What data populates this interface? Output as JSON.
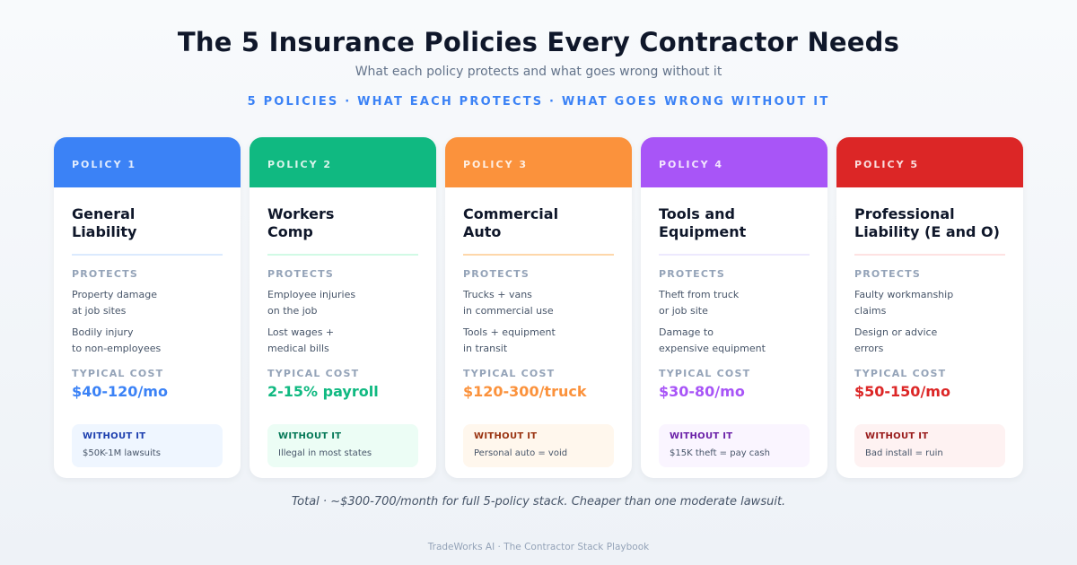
{
  "header": {
    "title": "The 5 Insurance Policies Every Contractor Needs",
    "subtitle": "What each policy protects and what goes wrong without it",
    "kicker": "5 POLICIES · WHAT EACH PROTECTS · WHAT GOES WRONG WITHOUT IT"
  },
  "labels": {
    "protects": "PROTECTS",
    "typical_cost": "TYPICAL COST",
    "without_it": "WITHOUT IT"
  },
  "policies": [
    {
      "tag": "POLICY 1",
      "name": "General\nLiability",
      "protects": [
        "Property damage\nat job sites",
        "Bodily injury\nto non-employees"
      ],
      "cost": "$40-120/mo",
      "without": "$50K-1M lawsuits",
      "accent": "#3b82f6",
      "divider": "#dbeafe",
      "without_bg": "#eff6ff",
      "without_label": "#1e40af"
    },
    {
      "tag": "POLICY 2",
      "name": "Workers\nComp",
      "protects": [
        "Employee injuries\non the job",
        "Lost wages +\nmedical bills"
      ],
      "cost": "2-15% payroll",
      "without": "Illegal in most states",
      "accent": "#10b981",
      "divider": "#d1fae5",
      "without_bg": "#ecfdf5",
      "without_label": "#047857"
    },
    {
      "tag": "POLICY 3",
      "name": "Commercial\nAuto",
      "protects": [
        "Trucks + vans\nin commercial use",
        "Tools + equipment\nin transit"
      ],
      "cost": "$120-300/truck",
      "without": "Personal auto = void",
      "accent": "#fb923c",
      "divider": "#fed7aa",
      "without_bg": "#fff7ed",
      "without_label": "#9a3412"
    },
    {
      "tag": "POLICY 4",
      "name": "Tools and\nEquipment",
      "protects": [
        "Theft from truck\nor job site",
        "Damage to\nexpensive equipment"
      ],
      "cost": "$30-80/mo",
      "without": "$15K theft = pay cash",
      "accent": "#a855f7",
      "divider": "#ede9fe",
      "without_bg": "#faf5ff",
      "without_label": "#6b21a8"
    },
    {
      "tag": "POLICY 5",
      "name": "Professional\nLiability (E and O)",
      "protects": [
        "Faulty workmanship\nclaims",
        "Design or advice\nerrors"
      ],
      "cost": "$50-150/mo",
      "without": "Bad install = ruin",
      "accent": "#dc2626",
      "divider": "#fee2e2",
      "without_bg": "#fef2f2",
      "without_label": "#991b1b"
    }
  ],
  "total": "Total · ~$300-700/month for full 5-policy stack. Cheaper than one moderate lawsuit.",
  "footer": "TradeWorks AI · The Contractor Stack Playbook"
}
